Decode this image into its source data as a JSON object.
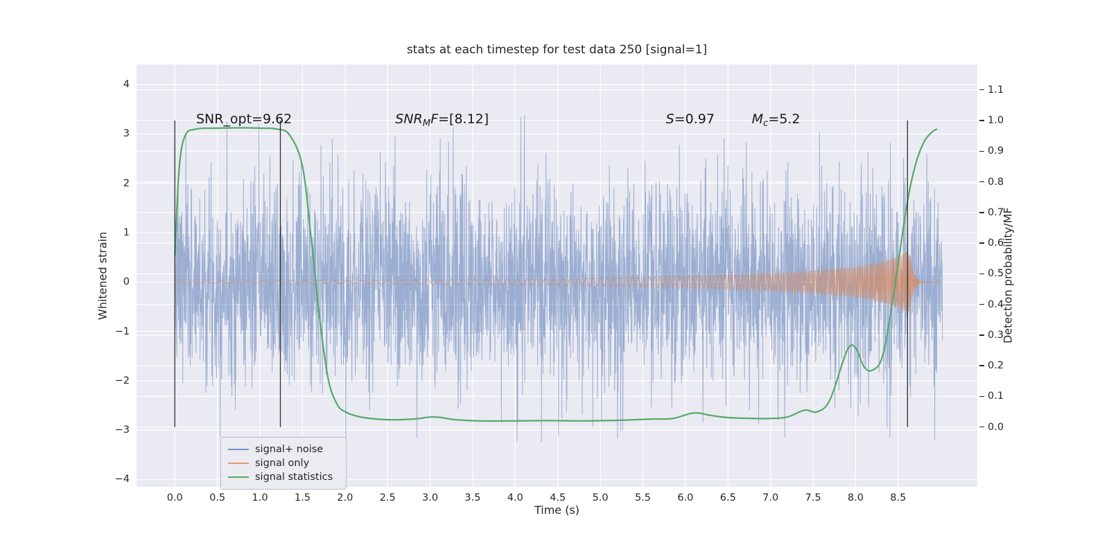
{
  "page": {
    "background": "#ffffff",
    "axes_background": "#eaeaf2",
    "grid_color": "#ffffff",
    "text_color": "#262626"
  },
  "chart_data": {
    "type": "line",
    "title": "stats at each timestep for test data 250 [signal=1]",
    "xlabel": "Time (s)",
    "ylabel_left": "Whitened strain",
    "ylabel_right": "Detection probability/MF",
    "xlim": [
      -0.45,
      9.43
    ],
    "yleft_lim": [
      -4.15,
      4.41
    ],
    "yright_lim": [
      -0.195,
      1.183
    ],
    "x_ticks": [
      0.0,
      0.5,
      1.0,
      1.5,
      2.0,
      2.5,
      3.0,
      3.5,
      4.0,
      4.5,
      5.0,
      5.5,
      6.0,
      6.5,
      7.0,
      7.5,
      8.0,
      8.5
    ],
    "yleft_ticks": [
      4,
      3,
      2,
      1,
      0,
      -1,
      -2,
      -3,
      -4
    ],
    "yright_ticks": [
      1.1,
      1.0,
      0.9,
      0.8,
      0.7,
      0.6,
      0.5,
      0.4,
      0.3,
      0.2,
      0.1,
      0.0
    ],
    "grid": true,
    "legend_position": "lower-left",
    "annotations": [
      {
        "text": "SNR_opt=9.62",
        "x": 0.25,
        "y": 3.3,
        "parts": [
          {
            "t": "SNR_opt=9.62"
          }
        ]
      },
      {
        "text": "SNR_MF=[8.12]",
        "x": 2.59,
        "y": 3.3,
        "parts": [
          {
            "t": "SNR",
            "i": 1
          },
          {
            "t": "M",
            "i": 1,
            "sub": 1
          },
          {
            "t": "F",
            "i": 1
          },
          {
            "t": "=[8.12]"
          }
        ]
      },
      {
        "text": "S=0.97",
        "x": 5.77,
        "y": 3.3,
        "parts": [
          {
            "t": "S",
            "i": 1
          },
          {
            "t": "=0.97"
          }
        ]
      },
      {
        "text": "M_c=5.2",
        "x": 6.78,
        "y": 3.3,
        "parts": [
          {
            "t": "M",
            "i": 1
          },
          {
            "t": "c",
            "i": 1,
            "sub": 1
          },
          {
            "t": "=5.2"
          }
        ]
      }
    ],
    "vlines": {
      "x": [
        0.0,
        1.24,
        8.61
      ],
      "y0": 0.0,
      "y1": 1.0,
      "axis": "right",
      "color": "#2e2e2e",
      "line_width": 1.3
    },
    "series": [
      {
        "name": "signal+ noise",
        "kind": "noise_plus_signal",
        "axis": "left",
        "color": "#4c72b0",
        "alpha": 0.5,
        "seed": 7,
        "n": 3200,
        "sigma": 1.0,
        "t_range": [
          0.0,
          9.02
        ]
      },
      {
        "name": "signal only",
        "kind": "chirp",
        "axis": "left",
        "color": "#dd8452",
        "alpha": 0.7,
        "n": 9000,
        "t_range": [
          0.0,
          9.02
        ],
        "t_merge": 8.62,
        "f0": 6,
        "f1": 61,
        "envelope": [
          [
            0,
            0.018
          ],
          [
            1,
            0.024
          ],
          [
            2,
            0.034
          ],
          [
            3,
            0.048
          ],
          [
            4,
            0.066
          ],
          [
            5,
            0.09
          ],
          [
            6,
            0.125
          ],
          [
            6.5,
            0.15
          ],
          [
            7,
            0.18
          ],
          [
            7.5,
            0.23
          ],
          [
            8,
            0.3
          ],
          [
            8.3,
            0.4
          ],
          [
            8.5,
            0.5
          ],
          [
            8.58,
            0.58
          ],
          [
            8.62,
            0.63
          ],
          [
            8.66,
            0.35
          ],
          [
            8.7,
            0.12
          ],
          [
            8.75,
            0.03
          ],
          [
            8.8,
            0.008
          ],
          [
            9.02,
            0.004
          ]
        ]
      },
      {
        "name": "signal statistics",
        "kind": "smooth_curve",
        "axis": "right",
        "color": "#55a868",
        "line_width": 2.2,
        "points": [
          [
            0,
            0.56
          ],
          [
            0.05,
            0.84
          ],
          [
            0.12,
            0.95
          ],
          [
            0.25,
            0.972
          ],
          [
            0.5,
            0.975
          ],
          [
            0.8,
            0.976
          ],
          [
            1.0,
            0.975
          ],
          [
            1.2,
            0.972
          ],
          [
            1.35,
            0.952
          ],
          [
            1.5,
            0.85
          ],
          [
            1.6,
            0.62
          ],
          [
            1.7,
            0.36
          ],
          [
            1.8,
            0.16
          ],
          [
            1.9,
            0.078
          ],
          [
            2.0,
            0.05
          ],
          [
            2.2,
            0.032
          ],
          [
            2.5,
            0.024
          ],
          [
            2.8,
            0.026
          ],
          [
            3.05,
            0.033
          ],
          [
            3.3,
            0.024
          ],
          [
            3.6,
            0.02
          ],
          [
            4.0,
            0.02
          ],
          [
            4.4,
            0.021
          ],
          [
            4.8,
            0.02
          ],
          [
            5.2,
            0.022
          ],
          [
            5.6,
            0.026
          ],
          [
            5.85,
            0.028
          ],
          [
            6.1,
            0.046
          ],
          [
            6.3,
            0.038
          ],
          [
            6.5,
            0.031
          ],
          [
            6.8,
            0.028
          ],
          [
            7.0,
            0.028
          ],
          [
            7.2,
            0.033
          ],
          [
            7.4,
            0.055
          ],
          [
            7.55,
            0.05
          ],
          [
            7.7,
            0.09
          ],
          [
            7.9,
            0.25
          ],
          [
            8.0,
            0.258
          ],
          [
            8.1,
            0.196
          ],
          [
            8.2,
            0.186
          ],
          [
            8.32,
            0.235
          ],
          [
            8.45,
            0.44
          ],
          [
            8.6,
            0.72
          ],
          [
            8.7,
            0.852
          ],
          [
            8.8,
            0.928
          ],
          [
            8.9,
            0.963
          ],
          [
            8.96,
            0.972
          ]
        ]
      }
    ]
  }
}
